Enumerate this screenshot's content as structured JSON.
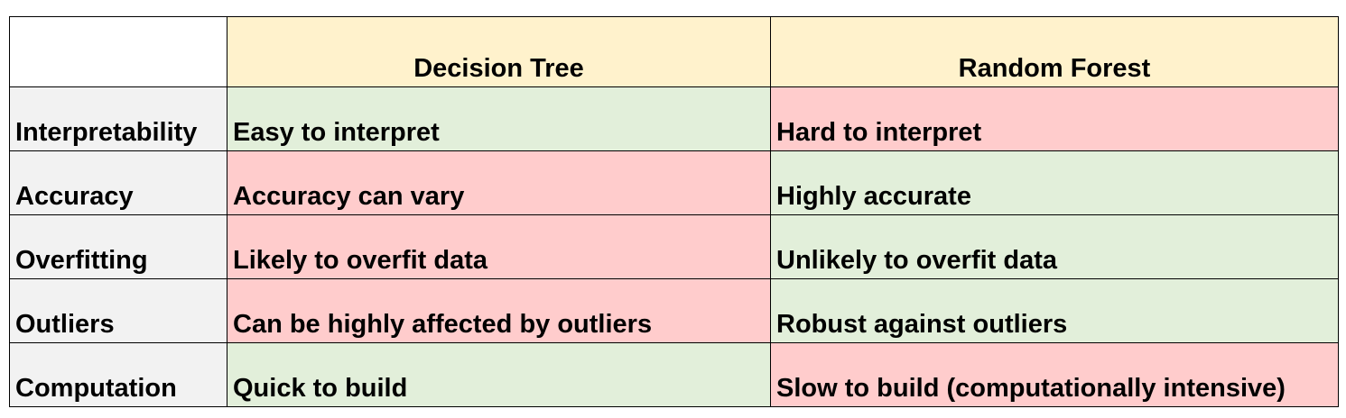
{
  "colors": {
    "header_bg": "#fff2cc",
    "label_bg": "#f2f2f2",
    "good_bg": "#e2efda",
    "bad_bg": "#ffcccc"
  },
  "table": {
    "headers": [
      "Decision Tree",
      "Random Forest"
    ],
    "rows": [
      {
        "label": "Interpretability",
        "decision_tree": "Easy to interpret",
        "random_forest": "Hard to interpret",
        "dt_status": "good",
        "rf_status": "bad"
      },
      {
        "label": "Accuracy",
        "decision_tree": "Accuracy can vary",
        "random_forest": "Highly accurate",
        "dt_status": "bad",
        "rf_status": "good"
      },
      {
        "label": "Overfitting",
        "decision_tree": "Likely to overfit data",
        "random_forest": "Unlikely to overfit data",
        "dt_status": "bad",
        "rf_status": "good"
      },
      {
        "label": "Outliers",
        "decision_tree": "Can be highly affected by outliers",
        "random_forest": "Robust against outliers",
        "dt_status": "bad",
        "rf_status": "good"
      },
      {
        "label": "Computation",
        "decision_tree": "Quick to build",
        "random_forest": "Slow to build (computationally intensive)",
        "dt_status": "good",
        "rf_status": "bad"
      }
    ]
  }
}
